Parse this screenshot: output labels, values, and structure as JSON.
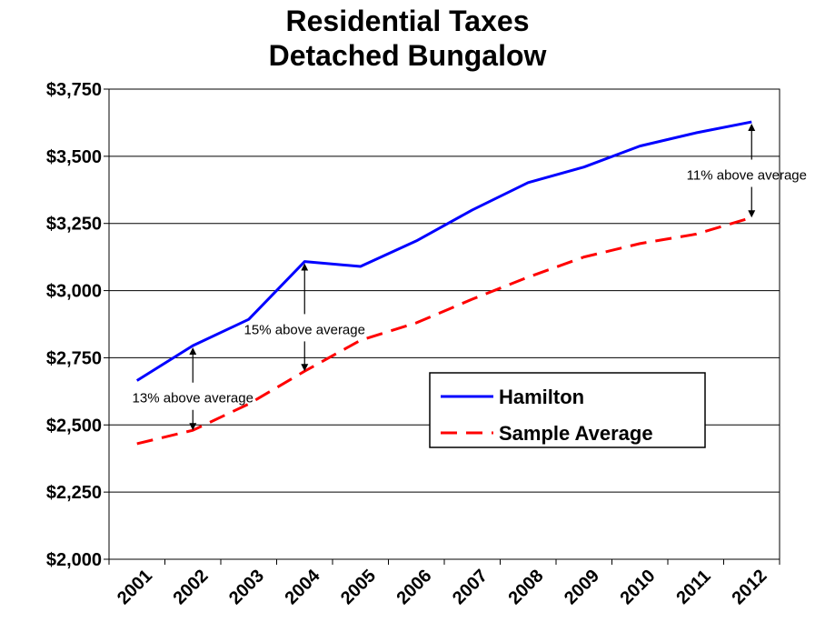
{
  "chart_data": {
    "type": "line",
    "title": "Residential Taxes",
    "subtitle": "Detached Bungalow",
    "xlabel": "",
    "ylabel": "",
    "categories": [
      "2001",
      "2002",
      "2003",
      "2004",
      "2005",
      "2006",
      "2007",
      "2008",
      "2009",
      "2010",
      "2011",
      "2012"
    ],
    "yticks": [
      "$2,000",
      "$2,250",
      "$2,500",
      "$2,750",
      "$3,000",
      "$3,250",
      "$3,500",
      "$3,750"
    ],
    "ylim": [
      2000,
      3750
    ],
    "grid": true,
    "legend_position": "center-right",
    "series": [
      {
        "name": "Hamilton",
        "color": "#0000FF",
        "style": "solid",
        "values": [
          2665,
          2795,
          2893,
          3108,
          3090,
          3185,
          3300,
          3402,
          3460,
          3538,
          3587,
          3628
        ]
      },
      {
        "name": "Sample Average",
        "color": "#FF0000",
        "style": "dashed",
        "values": [
          2430,
          2480,
          2578,
          2700,
          2815,
          2880,
          2968,
          3050,
          3125,
          3175,
          3210,
          3272
        ]
      }
    ],
    "annotations": [
      {
        "text": "13% above average",
        "year": "2002"
      },
      {
        "text": "15% above average",
        "year": "2004"
      },
      {
        "text": "11% above average",
        "year": "2012"
      }
    ]
  }
}
